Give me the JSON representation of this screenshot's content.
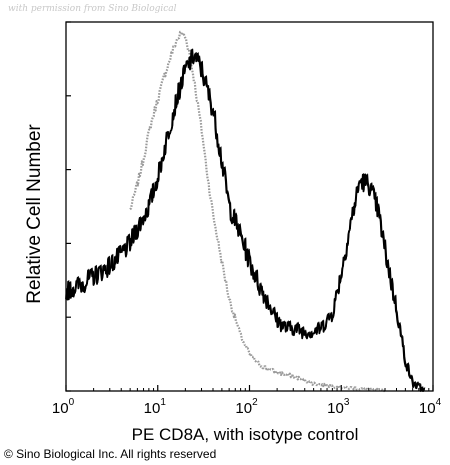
{
  "watermark": "with permission from Sino Biological",
  "copyright": "© Sino Biological Inc. All rights reserved",
  "chart_data": {
    "type": "line",
    "xlabel": "PE CD8A, with isotype control",
    "ylabel": "Relative Cell Number",
    "xscale": "log",
    "xlim": [
      1,
      10000
    ],
    "ylim": [
      0,
      100
    ],
    "x_ticks": [
      {
        "base": "10",
        "exp": "0"
      },
      {
        "base": "10",
        "exp": "1"
      },
      {
        "base": "10",
        "exp": "2"
      },
      {
        "base": "10",
        "exp": "3"
      },
      {
        "base": "10",
        "exp": "4"
      }
    ],
    "grid": false,
    "legend": "none",
    "series": [
      {
        "style": "solid-black-noisy",
        "color": "#000000",
        "x": [
          1,
          1.5,
          2,
          3,
          4,
          5,
          6,
          8,
          10,
          13,
          16,
          20,
          25,
          30,
          40,
          50,
          60,
          80,
          100,
          130,
          160,
          200,
          250,
          300,
          400,
          500,
          600,
          800,
          1000,
          1300,
          1600,
          2000,
          2500,
          3000,
          4000,
          5000,
          6000,
          7000,
          8000
        ],
        "y": [
          27,
          29,
          31,
          34,
          37,
          40,
          44,
          50,
          58,
          70,
          79,
          87,
          91,
          87,
          76,
          62,
          50,
          42,
          35,
          28,
          24,
          19,
          17,
          17,
          16,
          16,
          17,
          21,
          32,
          47,
          57,
          56,
          49,
          38,
          22,
          8,
          2,
          1,
          0
        ]
      },
      {
        "style": "gray-dotted-isotype",
        "color": "#9a9a9a",
        "x": [
          5,
          6,
          7,
          8,
          9,
          10,
          12,
          14,
          16,
          18,
          20,
          22,
          25,
          30,
          35,
          40,
          50,
          60,
          80,
          100,
          130,
          160,
          200,
          300,
          500,
          1000,
          2000,
          3000
        ],
        "y": [
          49,
          56,
          63,
          70,
          75,
          79,
          86,
          91,
          95,
          97,
          96,
          92,
          84,
          71,
          58,
          48,
          35,
          25,
          15,
          10,
          7,
          6,
          5,
          4,
          2,
          1,
          0.5,
          0
        ]
      }
    ]
  }
}
